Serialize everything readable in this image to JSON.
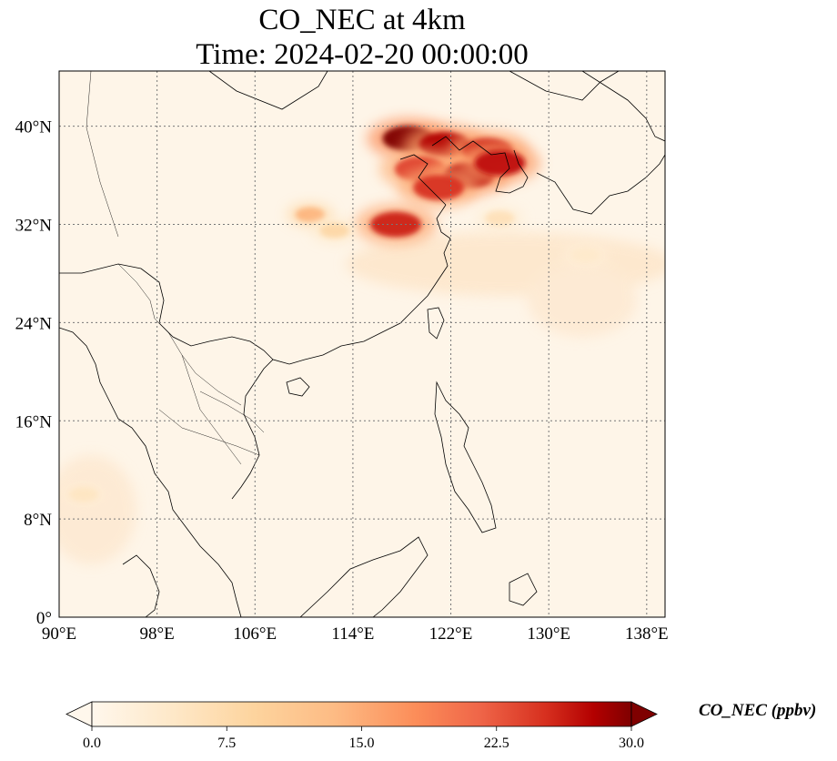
{
  "title_line1": "CO_NEC at 4km",
  "title_line2": "Time: 2024-02-20 00:00:00",
  "map": {
    "lon_range": [
      90,
      139.5
    ],
    "lat_range": [
      0,
      44.5
    ],
    "lon_ticks": [
      {
        "value": 90,
        "label": "90°E"
      },
      {
        "value": 98,
        "label": "98°E"
      },
      {
        "value": 106,
        "label": "106°E"
      },
      {
        "value": 114,
        "label": "114°E"
      },
      {
        "value": 122,
        "label": "122°E"
      },
      {
        "value": 130,
        "label": "130°E"
      },
      {
        "value": 138,
        "label": "138°E"
      }
    ],
    "lat_ticks": [
      {
        "value": 0,
        "label": "0°"
      },
      {
        "value": 8,
        "label": "8°N"
      },
      {
        "value": 16,
        "label": "16°N"
      },
      {
        "value": 24,
        "label": "24°N"
      },
      {
        "value": 32,
        "label": "32°N"
      },
      {
        "value": 40,
        "label": "40°N"
      }
    ],
    "gridlines": true,
    "background_color": "#fef6e9"
  },
  "colorbar": {
    "label": "CO_NEC (ppbv)",
    "ticks": [
      "0.0",
      "7.5",
      "15.0",
      "22.5",
      "30.0"
    ],
    "min": 0,
    "max": 30,
    "colormap": "OrRd",
    "extend": "both"
  },
  "plumes": [
    {
      "lon": 118.5,
      "lat": 39.0,
      "value": 30
    },
    {
      "lon": 121.5,
      "lat": 38.5,
      "value": 28
    },
    {
      "lon": 125.0,
      "lat": 38.0,
      "value": 26
    },
    {
      "lon": 119.5,
      "lat": 36.5,
      "value": 24
    },
    {
      "lon": 123.5,
      "lat": 36.0,
      "value": 28
    },
    {
      "lon": 126.0,
      "lat": 37.0,
      "value": 27
    },
    {
      "lon": 121.0,
      "lat": 35.0,
      "value": 25
    },
    {
      "lon": 117.5,
      "lat": 32.0,
      "value": 26
    },
    {
      "lon": 110.5,
      "lat": 32.8,
      "value": 14
    },
    {
      "lon": 112.5,
      "lat": 31.5,
      "value": 8
    },
    {
      "lon": 126.0,
      "lat": 32.5,
      "value": 6
    },
    {
      "lon": 133.0,
      "lat": 29.5,
      "value": 4
    },
    {
      "lon": 92.0,
      "lat": 10.0,
      "value": 5
    }
  ]
}
